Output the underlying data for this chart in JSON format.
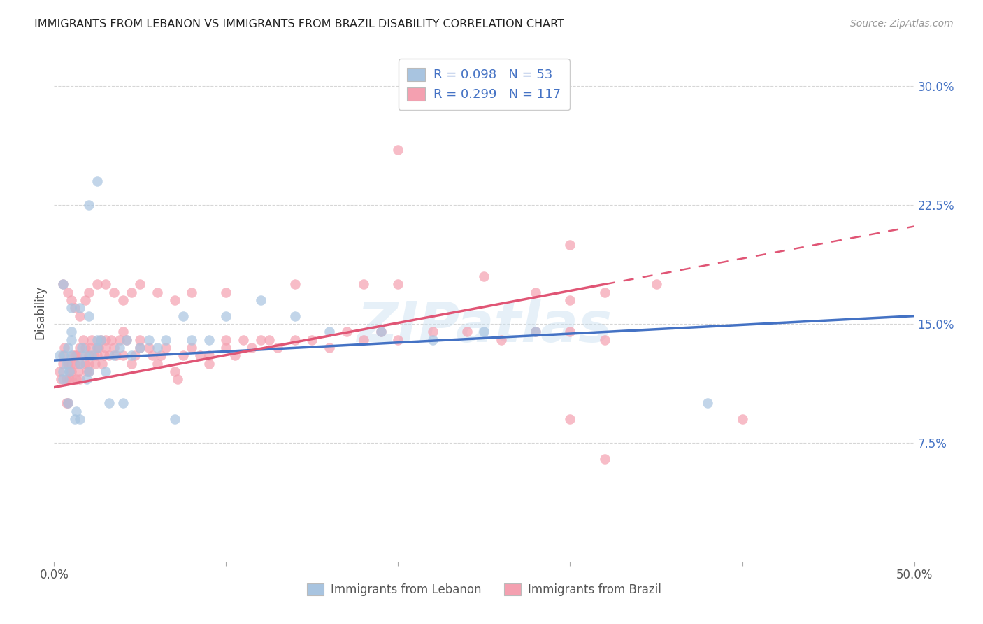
{
  "title": "IMMIGRANTS FROM LEBANON VS IMMIGRANTS FROM BRAZIL DISABILITY CORRELATION CHART",
  "source": "Source: ZipAtlas.com",
  "ylabel": "Disability",
  "xlim": [
    0.0,
    0.5
  ],
  "ylim": [
    0.0,
    0.315
  ],
  "yticks_right": [
    0.075,
    0.15,
    0.225,
    0.3
  ],
  "ytick_right_labels": [
    "7.5%",
    "15.0%",
    "22.5%",
    "30.0%"
  ],
  "color_lebanon": "#a8c4e0",
  "color_brazil": "#f4a0b0",
  "line_color_lebanon": "#4472c4",
  "line_color_brazil": "#e05575",
  "watermark": "ZIPatlas",
  "background_color": "#ffffff",
  "legend_label1": "Immigrants from Lebanon",
  "legend_label2": "Immigrants from Brazil",
  "lebanon_x": [
    0.003,
    0.005,
    0.005,
    0.006,
    0.007,
    0.008,
    0.008,
    0.009,
    0.01,
    0.01,
    0.01,
    0.012,
    0.013,
    0.015,
    0.015,
    0.016,
    0.018,
    0.019,
    0.02,
    0.02,
    0.022,
    0.025,
    0.025,
    0.027,
    0.03,
    0.032,
    0.035,
    0.038,
    0.04,
    0.042,
    0.045,
    0.05,
    0.055,
    0.06,
    0.065,
    0.07,
    0.075,
    0.08,
    0.09,
    0.1,
    0.12,
    0.14,
    0.16,
    0.19,
    0.22,
    0.25,
    0.28,
    0.38,
    0.005,
    0.01,
    0.015,
    0.02,
    0.025
  ],
  "lebanon_y": [
    0.13,
    0.12,
    0.115,
    0.13,
    0.125,
    0.135,
    0.1,
    0.12,
    0.13,
    0.14,
    0.145,
    0.09,
    0.095,
    0.09,
    0.125,
    0.135,
    0.13,
    0.115,
    0.12,
    0.155,
    0.13,
    0.135,
    0.14,
    0.14,
    0.12,
    0.1,
    0.13,
    0.135,
    0.1,
    0.14,
    0.13,
    0.135,
    0.14,
    0.135,
    0.14,
    0.09,
    0.155,
    0.14,
    0.14,
    0.155,
    0.165,
    0.155,
    0.145,
    0.145,
    0.14,
    0.145,
    0.145,
    0.1,
    0.175,
    0.16,
    0.16,
    0.225,
    0.24
  ],
  "brazil_x": [
    0.003,
    0.004,
    0.005,
    0.005,
    0.006,
    0.007,
    0.007,
    0.008,
    0.008,
    0.009,
    0.009,
    0.01,
    0.01,
    0.01,
    0.011,
    0.012,
    0.012,
    0.013,
    0.013,
    0.014,
    0.015,
    0.015,
    0.015,
    0.016,
    0.017,
    0.018,
    0.018,
    0.019,
    0.02,
    0.02,
    0.02,
    0.021,
    0.022,
    0.023,
    0.024,
    0.025,
    0.025,
    0.026,
    0.027,
    0.028,
    0.029,
    0.03,
    0.03,
    0.032,
    0.033,
    0.035,
    0.036,
    0.038,
    0.04,
    0.04,
    0.042,
    0.045,
    0.047,
    0.05,
    0.05,
    0.055,
    0.057,
    0.06,
    0.062,
    0.065,
    0.07,
    0.072,
    0.075,
    0.08,
    0.085,
    0.09,
    0.09,
    0.1,
    0.1,
    0.105,
    0.11,
    0.115,
    0.12,
    0.125,
    0.13,
    0.14,
    0.15,
    0.16,
    0.17,
    0.18,
    0.19,
    0.2,
    0.22,
    0.24,
    0.26,
    0.28,
    0.3,
    0.32,
    0.005,
    0.008,
    0.01,
    0.012,
    0.015,
    0.018,
    0.02,
    0.025,
    0.03,
    0.035,
    0.04,
    0.045,
    0.05,
    0.06,
    0.07,
    0.08,
    0.1,
    0.14,
    0.18,
    0.2,
    0.28,
    0.3,
    0.32,
    0.35,
    0.4,
    0.2,
    0.25,
    0.3,
    0.32,
    0.3
  ],
  "brazil_y": [
    0.12,
    0.115,
    0.13,
    0.125,
    0.135,
    0.1,
    0.115,
    0.125,
    0.1,
    0.12,
    0.115,
    0.125,
    0.12,
    0.115,
    0.13,
    0.125,
    0.13,
    0.115,
    0.13,
    0.12,
    0.135,
    0.125,
    0.115,
    0.13,
    0.14,
    0.135,
    0.125,
    0.12,
    0.13,
    0.125,
    0.12,
    0.135,
    0.14,
    0.13,
    0.125,
    0.135,
    0.13,
    0.135,
    0.14,
    0.125,
    0.13,
    0.14,
    0.135,
    0.13,
    0.14,
    0.135,
    0.13,
    0.14,
    0.145,
    0.13,
    0.14,
    0.125,
    0.13,
    0.135,
    0.14,
    0.135,
    0.13,
    0.125,
    0.13,
    0.135,
    0.12,
    0.115,
    0.13,
    0.135,
    0.13,
    0.125,
    0.13,
    0.14,
    0.135,
    0.13,
    0.14,
    0.135,
    0.14,
    0.14,
    0.135,
    0.14,
    0.14,
    0.135,
    0.145,
    0.14,
    0.145,
    0.14,
    0.145,
    0.145,
    0.14,
    0.145,
    0.145,
    0.14,
    0.175,
    0.17,
    0.165,
    0.16,
    0.155,
    0.165,
    0.17,
    0.175,
    0.175,
    0.17,
    0.165,
    0.17,
    0.175,
    0.17,
    0.165,
    0.17,
    0.17,
    0.175,
    0.175,
    0.175,
    0.17,
    0.165,
    0.17,
    0.175,
    0.09,
    0.26,
    0.18,
    0.2,
    0.065,
    0.09
  ]
}
